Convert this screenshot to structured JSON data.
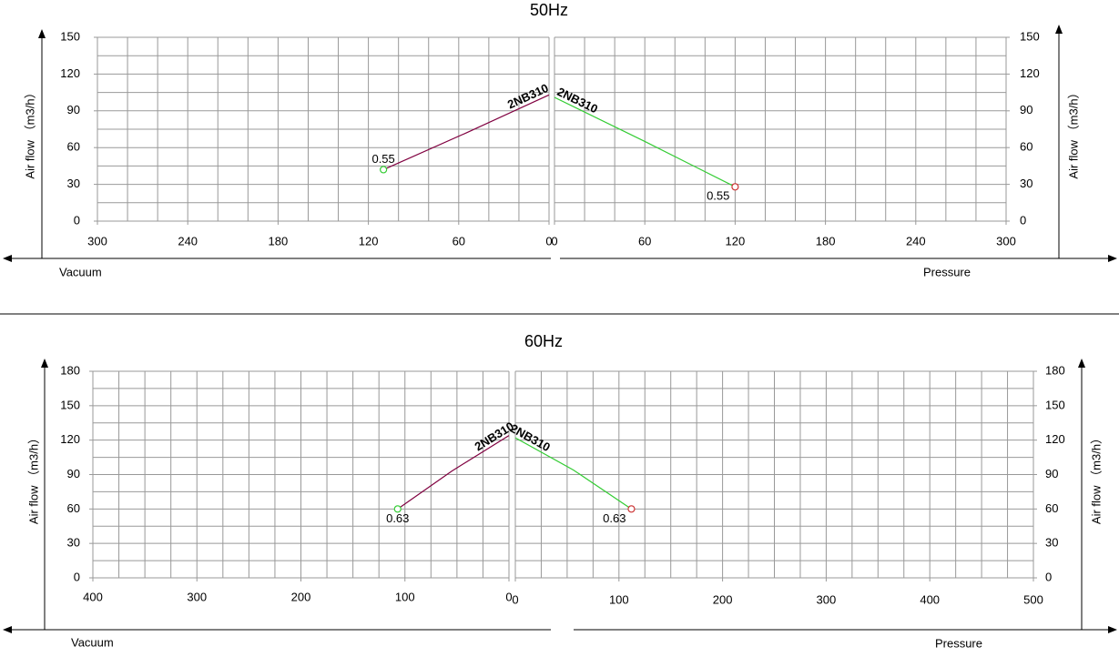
{
  "chart_data": [
    {
      "type": "line",
      "title": "50Hz",
      "xlabel": "Vacuum",
      "ylabel": "Air flow （m3/h）",
      "xlim": [
        300,
        0
      ],
      "xticks": [
        300,
        240,
        180,
        120,
        60,
        0
      ],
      "x_grid_step": 20,
      "ylim": [
        0,
        150
      ],
      "yticks": [
        0,
        30,
        60,
        90,
        120,
        150
      ],
      "y_grid_step": 15,
      "grid": true,
      "series": [
        {
          "name": "2NB310",
          "color": "#800040",
          "marker_color": "#33cc33",
          "x": [
            110,
            55,
            0
          ],
          "values": [
            42,
            72,
            103
          ],
          "point_label": "0.55"
        }
      ]
    },
    {
      "type": "line",
      "xlabel": "Pressure",
      "ylabel": "Air flow （m3/h）",
      "xlim": [
        0,
        300
      ],
      "xticks": [
        0,
        60,
        120,
        180,
        240,
        300
      ],
      "x_grid_step": 20,
      "ylim": [
        0,
        150
      ],
      "yticks": [
        0,
        30,
        60,
        90,
        120,
        150
      ],
      "y_grid_step": 15,
      "grid": true,
      "series": [
        {
          "name": "2NB310",
          "color": "#33cc33",
          "marker_color": "#cc3333",
          "x": [
            0,
            60,
            120
          ],
          "values": [
            101,
            65,
            28
          ],
          "point_label": "0.55"
        }
      ]
    },
    {
      "type": "line",
      "title": "60Hz",
      "xlabel": "Vacuum",
      "ylabel": "Air flow （m3/h）",
      "xlim": [
        400,
        0
      ],
      "xticks": [
        400,
        300,
        200,
        100,
        0
      ],
      "x_grid_step": 25,
      "ylim": [
        0,
        180
      ],
      "yticks": [
        0,
        30,
        60,
        90,
        120,
        150,
        180
      ],
      "y_grid_step": 15,
      "grid": true,
      "series": [
        {
          "name": "2NB310",
          "color": "#800040",
          "marker_color": "#33cc33",
          "x": [
            107,
            55,
            0
          ],
          "values": [
            60,
            93,
            124
          ],
          "point_label": "0.63"
        }
      ]
    },
    {
      "type": "line",
      "xlabel": "Pressure",
      "ylabel": "Air flow （m3/h）",
      "xlim": [
        0,
        500
      ],
      "xticks": [
        0,
        100,
        200,
        300,
        400,
        500
      ],
      "x_grid_step": 25,
      "ylim": [
        0,
        180
      ],
      "yticks": [
        0,
        30,
        60,
        90,
        120,
        150,
        180
      ],
      "y_grid_step": 15,
      "grid": true,
      "series": [
        {
          "name": "2NB310",
          "color": "#33cc33",
          "marker_color": "#cc3333",
          "x": [
            0,
            56,
            112
          ],
          "values": [
            122,
            94,
            60
          ],
          "point_label": "0.63"
        }
      ]
    }
  ]
}
